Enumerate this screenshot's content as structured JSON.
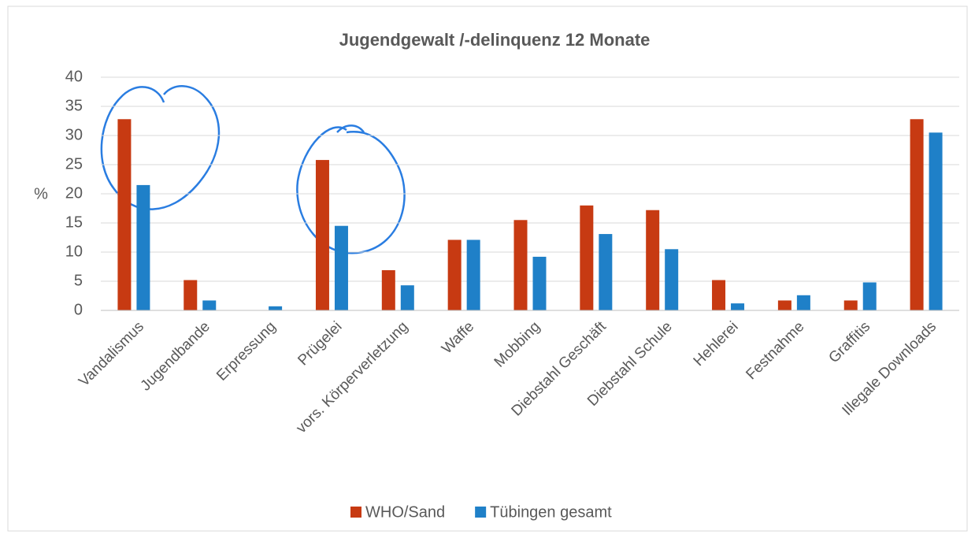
{
  "chart_data": {
    "type": "bar",
    "title": "Jugendgewalt /-delinquenz 12 Monate",
    "y_label": "%",
    "categories": [
      "Vandalismus",
      "Jugendbande",
      "Erpressung",
      "Prügelei",
      "vors. Körperverletzung",
      "Waffe",
      "Mobbing",
      "Diebstahl Geschäft",
      "Diebstahl Schule",
      "Hehlerei",
      "Festnahme",
      "Graffitis",
      "Illegale Downloads"
    ],
    "series": [
      {
        "name": "WHO/Sand",
        "color": "#c73a12",
        "values": [
          32.8,
          5.2,
          0,
          25.8,
          6.9,
          12.1,
          15.5,
          18,
          17.2,
          5.2,
          1.7,
          1.7,
          32.8
        ]
      },
      {
        "name": "Tübingen gesamt",
        "color": "#1f80c8",
        "values": [
          21.5,
          1.7,
          0.7,
          14.5,
          4.3,
          12.1,
          9.2,
          13.1,
          10.5,
          1.2,
          2.6,
          4.8,
          30.5
        ]
      }
    ],
    "ylim": [
      0,
      40
    ],
    "yticks": [
      0,
      5,
      10,
      15,
      20,
      25,
      30,
      35,
      40
    ],
    "grid": true,
    "legend": "bottom"
  }
}
